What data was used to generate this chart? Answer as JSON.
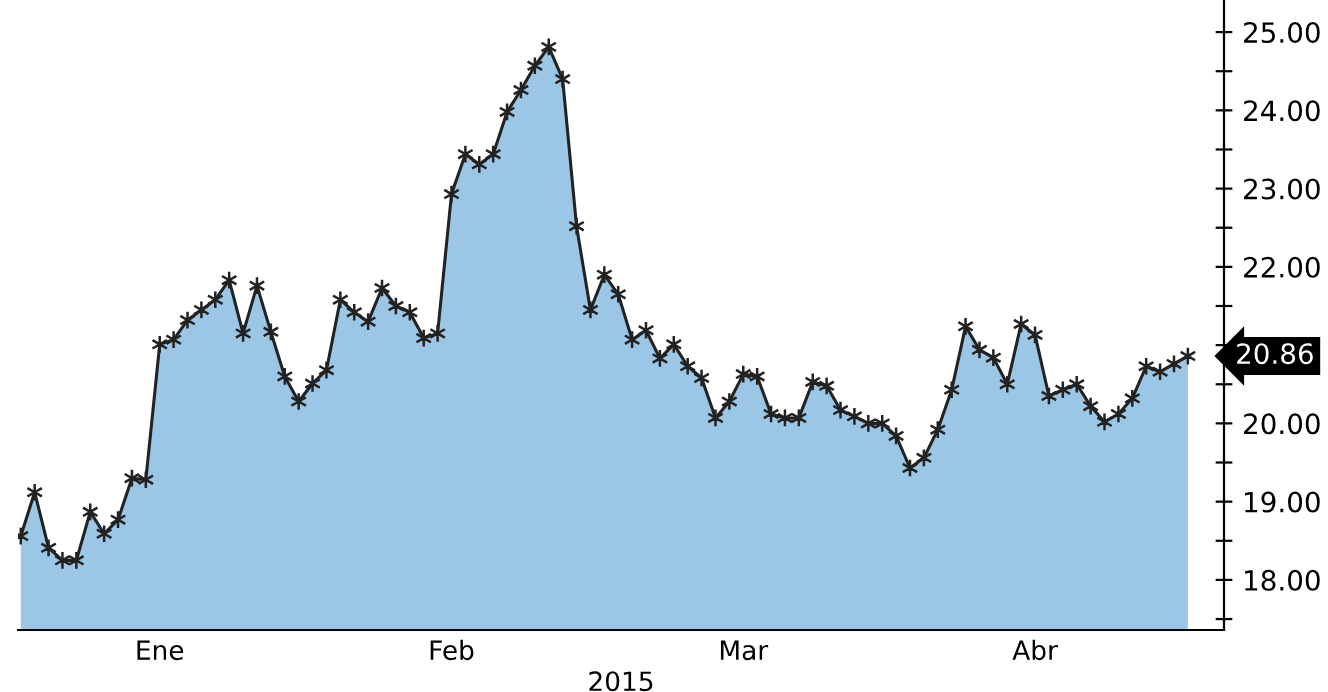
{
  "chart_data": {
    "type": "area",
    "xlabel": "2015",
    "categories": [
      null,
      null,
      null,
      null,
      null,
      null,
      null,
      null,
      null,
      null,
      "Ene",
      null,
      null,
      null,
      null,
      null,
      null,
      null,
      null,
      null,
      null,
      null,
      null,
      null,
      null,
      null,
      null,
      null,
      null,
      null,
      null,
      "Feb",
      null,
      null,
      null,
      null,
      null,
      null,
      null,
      null,
      null,
      null,
      null,
      null,
      null,
      null,
      null,
      null,
      null,
      null,
      null,
      null,
      "Mar",
      null,
      null,
      null,
      null,
      null,
      null,
      null,
      null,
      null,
      null,
      null,
      null,
      null,
      null,
      null,
      null,
      null,
      null,
      null,
      null,
      "Abr",
      null,
      null,
      null,
      null,
      null,
      null,
      null,
      null,
      null,
      null,
      null
    ],
    "series": [
      {
        "color": "#9cc6e6",
        "values": [
          18.56,
          19.12,
          18.41,
          18.25,
          18.25,
          18.87,
          18.59,
          18.77,
          19.3,
          19.28,
          21.01,
          21.07,
          21.32,
          21.45,
          21.58,
          21.83,
          21.15,
          21.76,
          21.17,
          20.6,
          20.28,
          20.51,
          20.68,
          21.58,
          21.42,
          21.3,
          21.73,
          21.5,
          21.42,
          21.09,
          21.15,
          22.93,
          23.44,
          23.31,
          23.44,
          23.98,
          24.26,
          24.57,
          24.81,
          24.4,
          22.52,
          21.45,
          21.9,
          21.65,
          21.07,
          21.19,
          20.83,
          21.01,
          20.73,
          20.58,
          20.07,
          20.28,
          20.63,
          20.6,
          20.12,
          20.07,
          20.07,
          20.53,
          20.48,
          20.17,
          20.09,
          20.0,
          20.0,
          19.84,
          19.43,
          19.56,
          19.92,
          20.43,
          21.24,
          20.94,
          20.84,
          20.5,
          21.27,
          21.13,
          20.35,
          20.43,
          20.5,
          20.22,
          20.02,
          20.12,
          20.32,
          20.73,
          20.66,
          20.76,
          20.86
        ]
      }
    ],
    "ylim": [
      17.36,
      25.41
    ],
    "yticks": [
      {
        "value": 17.5,
        "label": null
      },
      {
        "value": 18,
        "label": "18.00"
      },
      {
        "value": 18.5,
        "label": null
      },
      {
        "value": 19,
        "label": "19.00"
      },
      {
        "value": 19.5,
        "label": null
      },
      {
        "value": 20,
        "label": "20.00"
      },
      {
        "value": 20.5,
        "label": null
      },
      {
        "value": 21,
        "label": null
      },
      {
        "value": 21.5,
        "label": null
      },
      {
        "value": 22,
        "label": "22.00"
      },
      {
        "value": 22.5,
        "label": null
      },
      {
        "value": 23,
        "label": "23.00"
      },
      {
        "value": 23.5,
        "label": null
      },
      {
        "value": 24,
        "label": "24.00"
      },
      {
        "value": 24.5,
        "label": null
      },
      {
        "value": 25,
        "label": "25.00"
      }
    ],
    "annotations": [
      "20.86"
    ],
    "marker": "cross",
    "line_style": "solid",
    "grid": false
  }
}
